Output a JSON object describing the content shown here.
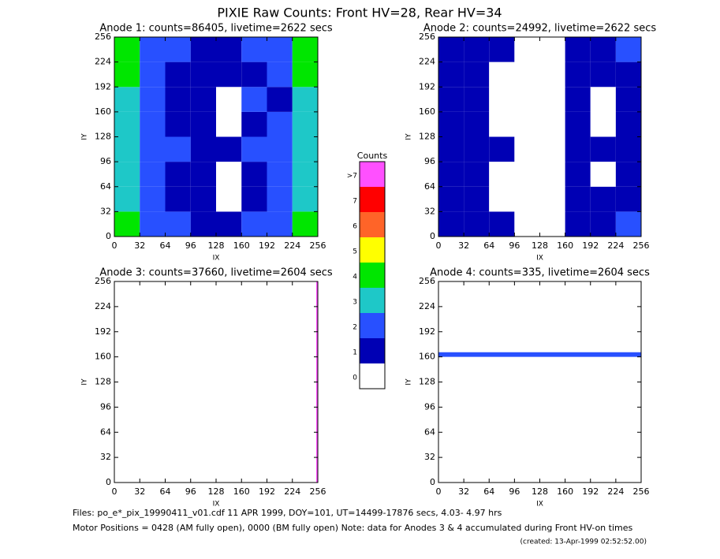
{
  "title": "PIXIE Raw Counts:  Front HV=28, Rear HV=34",
  "chart_data": [
    {
      "type": "heatmap",
      "title": "Anode 1: counts=86405, livetime=2622 secs",
      "xlabel": "IX",
      "ylabel": "IY",
      "xlim": [
        0,
        256
      ],
      "ylim": [
        0,
        256
      ],
      "xticks": [
        0,
        32,
        64,
        96,
        128,
        160,
        192,
        224,
        256
      ],
      "yticks": [
        0,
        32,
        64,
        96,
        128,
        160,
        192,
        224,
        256
      ],
      "xbins": [
        0,
        32,
        64,
        96,
        128,
        160,
        192,
        224,
        256
      ],
      "ybins": [
        0,
        32,
        64,
        96,
        128,
        160,
        192,
        224,
        256
      ],
      "values": [
        [
          4,
          2,
          2,
          1,
          1,
          2,
          2,
          4
        ],
        [
          3,
          2,
          1,
          1,
          0,
          1,
          2,
          3
        ],
        [
          3,
          2,
          1,
          1,
          0,
          1,
          2,
          3
        ],
        [
          3,
          2,
          2,
          1,
          1,
          2,
          2,
          3
        ],
        [
          3,
          2,
          1,
          1,
          0,
          1,
          2,
          3
        ],
        [
          3,
          2,
          1,
          1,
          0,
          2,
          1,
          3
        ],
        [
          4,
          2,
          1,
          1,
          1,
          1,
          2,
          4
        ],
        [
          4,
          2,
          2,
          1,
          1,
          2,
          2,
          4
        ]
      ]
    },
    {
      "type": "heatmap",
      "title": "Anode 2: counts=24992, livetime=2622 secs",
      "xlabel": "IX",
      "ylabel": "IY",
      "xlim": [
        0,
        256
      ],
      "ylim": [
        0,
        256
      ],
      "xticks": [
        0,
        32,
        64,
        96,
        128,
        160,
        192,
        224,
        256
      ],
      "yticks": [
        0,
        32,
        64,
        96,
        128,
        160,
        192,
        224,
        256
      ],
      "xbins": [
        0,
        32,
        64,
        96,
        128,
        160,
        192,
        224,
        256
      ],
      "ybins": [
        0,
        32,
        64,
        96,
        128,
        160,
        192,
        224,
        256
      ],
      "values": [
        [
          1,
          1,
          1,
          0,
          0,
          1,
          1,
          2
        ],
        [
          1,
          1,
          0,
          0,
          0,
          1,
          1,
          1
        ],
        [
          1,
          1,
          0,
          0,
          0,
          1,
          0,
          1
        ],
        [
          1,
          1,
          1,
          0,
          0,
          1,
          1,
          1
        ],
        [
          1,
          1,
          0,
          0,
          0,
          1,
          0,
          1
        ],
        [
          1,
          1,
          0,
          0,
          0,
          1,
          0,
          1
        ],
        [
          1,
          1,
          0,
          0,
          0,
          1,
          1,
          1
        ],
        [
          1,
          1,
          1,
          0,
          0,
          1,
          1,
          2
        ]
      ]
    },
    {
      "type": "heatmap",
      "title": "Anode 3: counts=37660, livetime=2604 secs",
      "xlabel": "IX",
      "ylabel": "IY",
      "xlim": [
        0,
        256
      ],
      "ylim": [
        0,
        256
      ],
      "xticks": [
        0,
        32,
        64,
        96,
        128,
        160,
        192,
        224,
        256
      ],
      "yticks": [
        0,
        32,
        64,
        96,
        128,
        160,
        192,
        224,
        256
      ],
      "xbins": [
        0,
        254,
        256
      ],
      "ybins": [
        0,
        256
      ],
      "values": [
        [
          0,
          8
        ]
      ]
    },
    {
      "type": "heatmap",
      "title": "Anode 4: counts=335, livetime=2604 secs",
      "xlabel": "IX",
      "ylabel": "IY",
      "xlim": [
        0,
        256
      ],
      "ylim": [
        0,
        256
      ],
      "xticks": [
        0,
        32,
        64,
        96,
        128,
        160,
        192,
        224,
        256
      ],
      "yticks": [
        0,
        32,
        64,
        96,
        128,
        160,
        192,
        224,
        256
      ],
      "xbins": [
        0,
        256
      ],
      "ybins": [
        0,
        160,
        166,
        256
      ],
      "values": [
        [
          0
        ],
        [
          2
        ],
        [
          0
        ]
      ]
    }
  ],
  "colorbar": {
    "title": "Counts",
    "labels": [
      0,
      1,
      2,
      3,
      4,
      5,
      6,
      7,
      ">7"
    ],
    "colors": [
      "#ffffff",
      "#0000b4",
      "#2850ff",
      "#1ec8c8",
      "#00e600",
      "#ffff00",
      "#ff6428",
      "#ff0000",
      "#ff50ff"
    ]
  },
  "footer": {
    "files": "Files: po_e*_pix_19990411_v01.cdf    11 APR 1999, DOY=101, UT=14499-17876 secs,  4.03- 4.97 hrs",
    "motor": "Motor Positions = 0428 (AM fully open), 0000 (BM fully open)    Note: data for Anodes 3 & 4 accumulated during Front HV-on times",
    "created": "(created: 13-Apr-1999 02:52:52.00)"
  }
}
